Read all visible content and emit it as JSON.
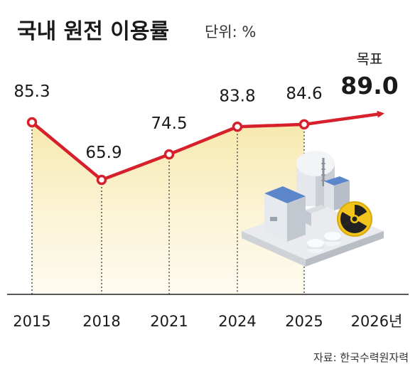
{
  "chart_data": {
    "type": "line",
    "title": "국내 원전 이용률",
    "unit": "단위: %",
    "categories": [
      "2015",
      "2018",
      "2021",
      "2024",
      "2025",
      "2026년"
    ],
    "values": [
      85.3,
      65.9,
      74.5,
      83.8,
      84.6,
      89.0
    ],
    "value_labels": [
      "85.3",
      "65.9",
      "74.5",
      "83.8",
      "84.6",
      "89.0"
    ],
    "target_label": "목표",
    "target_index": 5,
    "ylim": [
      55,
      95
    ],
    "grid": false,
    "colors": {
      "line": "#d6202b",
      "marker_fill": "#ffffff",
      "area_top": "#f6e7a8",
      "area_bottom": "#fdf8e4",
      "guide": "#333333",
      "baseline": "#222222"
    }
  },
  "source": "자료: 한국수력원자력",
  "illustration": {
    "name": "nuclear-power-plant",
    "icon": "radiation-icon"
  }
}
